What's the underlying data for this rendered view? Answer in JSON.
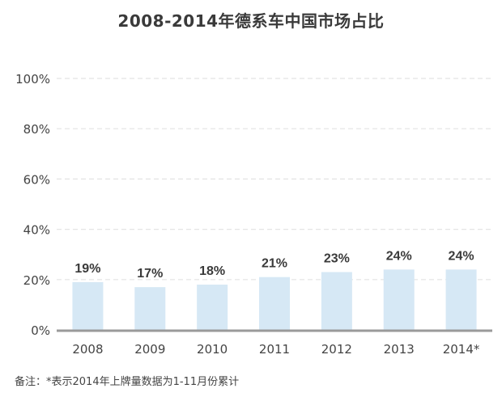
{
  "chart_data": {
    "type": "bar",
    "title": "2008-2014年德系车中国市场占比",
    "categories": [
      "2008",
      "2009",
      "2010",
      "2011",
      "2012",
      "2013",
      "2014*"
    ],
    "values": [
      19,
      17,
      18,
      21,
      23,
      24,
      24
    ],
    "value_labels": [
      "19%",
      "17%",
      "18%",
      "21%",
      "23%",
      "24%",
      "24%"
    ],
    "yticks": [
      "0%",
      "20%",
      "40%",
      "60%",
      "80%",
      "100%"
    ],
    "ylim": [
      0,
      100
    ],
    "xlabel": "",
    "ylabel": "",
    "grid": true,
    "colors": {
      "bar": "#d6e8f5",
      "grid": "#e4e4e4",
      "axis": "#9a9a9a",
      "label": "#3a3a3a"
    }
  },
  "note": "备注：*表示2014年上牌量数据为1-11月份累计"
}
